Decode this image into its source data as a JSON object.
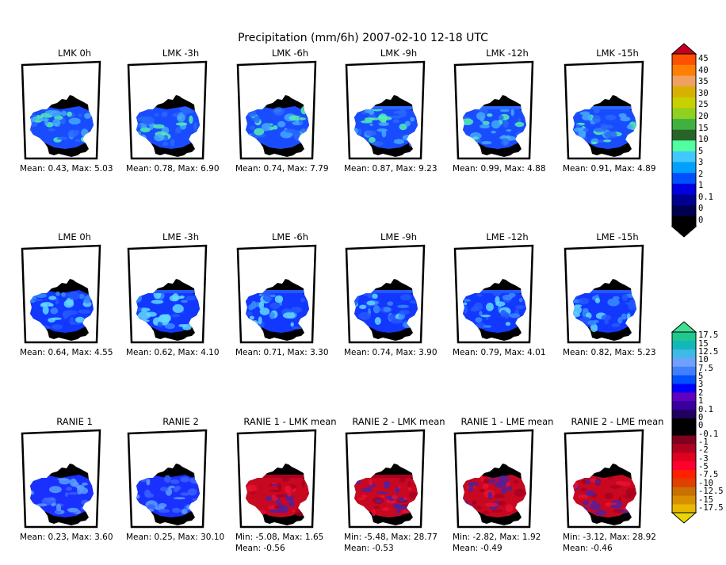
{
  "figure_title": "Precipitation (mm/6h) 2007-02-10 12-18 UTC",
  "map_style": {
    "background": "#000000",
    "colors": {
      "lmk": [
        "#1a4cff",
        "#2a68ff",
        "#44a8ff",
        "#54f0b0"
      ],
      "lme": [
        "#1238ff",
        "#2458ff",
        "#3a8cff",
        "#60d8ff"
      ],
      "ranie": [
        "#1a30ff",
        "#3860ff",
        "#5aa0ff"
      ],
      "diff": [
        "#c80820",
        "#a80020",
        "#e81030",
        "#5020a0"
      ]
    }
  },
  "rows": [
    {
      "panels": [
        {
          "title": "LMK 0h",
          "stat": "Mean: 0.43, Max: 5.03",
          "scheme": "lmk",
          "stripe": false
        },
        {
          "title": "LMK -3h",
          "stat": "Mean: 0.78, Max: 6.90",
          "scheme": "lmk",
          "stripe": false
        },
        {
          "title": "LMK -6h",
          "stat": "Mean: 0.74, Max: 7.79",
          "scheme": "lmk",
          "stripe": false
        },
        {
          "title": "LMK -9h",
          "stat": "Mean: 0.87, Max: 9.23",
          "scheme": "lmk",
          "stripe": true
        },
        {
          "title": "LMK -12h",
          "stat": "Mean: 0.99, Max: 4.88",
          "scheme": "lmk",
          "stripe": true
        },
        {
          "title": "LMK -15h",
          "stat": "Mean: 0.91, Max: 4.89",
          "scheme": "lmk",
          "stripe": true
        }
      ]
    },
    {
      "panels": [
        {
          "title": "LME 0h",
          "stat": "Mean: 0.64, Max: 4.55",
          "scheme": "lme",
          "stripe": false
        },
        {
          "title": "LME -3h",
          "stat": "Mean: 0.62, Max: 4.10",
          "scheme": "lme",
          "stripe": true
        },
        {
          "title": "LME -6h",
          "stat": "Mean: 0.71, Max: 3.30",
          "scheme": "lme",
          "stripe": true
        },
        {
          "title": "LME -9h",
          "stat": "Mean: 0.74, Max: 3.90",
          "scheme": "lme",
          "stripe": true
        },
        {
          "title": "LME -12h",
          "stat": "Mean: 0.79, Max: 4.01",
          "scheme": "lme",
          "stripe": true
        },
        {
          "title": "LME -15h",
          "stat": "Mean: 0.82, Max: 5.23",
          "scheme": "lme",
          "stripe": true
        }
      ]
    },
    {
      "panels": [
        {
          "title": "RANIE 1",
          "stat": "Mean: 0.23, Max: 3.60",
          "scheme": "ranie",
          "stripe": false
        },
        {
          "title": "RANIE 2",
          "stat": "Mean: 0.25, Max: 30.10",
          "scheme": "ranie",
          "stripe": false
        },
        {
          "title": "RANIE 1 - LMK mean",
          "stat": "Min: -5.08, Max: 1.65",
          "stat2": "Mean: -0.56",
          "scheme": "diff",
          "stripe": true
        },
        {
          "title": "RANIE 2 - LMK mean",
          "stat": "Min: -5.48, Max: 28.77",
          "stat2": "Mean: -0.53",
          "scheme": "diff",
          "stripe": true
        },
        {
          "title": "RANIE 1 - LME mean",
          "stat": "Min: -2.82, Max: 1.92",
          "stat2": "Mean: -0.49",
          "scheme": "diff",
          "stripe": false
        },
        {
          "title": "RANIE 2 - LME mean",
          "stat": "Min: -3.12, Max: 28.92",
          "stat2": "Mean: -0.46",
          "scheme": "diff",
          "stripe": false
        }
      ]
    }
  ],
  "colorbars": [
    {
      "name": "precipitation",
      "colors": [
        "#000000",
        "#000000",
        "#000050",
        "#000090",
        "#0000e0",
        "#0050ff",
        "#00a0ff",
        "#40c8ff",
        "#50ffa0",
        "#286428",
        "#40b040",
        "#90d020",
        "#c8d000",
        "#d8b000",
        "#f0a060",
        "#ff8000",
        "#ff5000",
        "#c80020"
      ],
      "labels": [
        "0",
        "0",
        "0.1",
        "1",
        "2",
        "3",
        "5",
        "10",
        "15",
        "20",
        "25",
        "30",
        "35",
        "40",
        "45"
      ]
    },
    {
      "name": "difference",
      "colors": [
        "#e8d800",
        "#e8b800",
        "#d89000",
        "#c87000",
        "#e04000",
        "#ff2000",
        "#ff0030",
        "#e00020",
        "#b00020",
        "#800020",
        "#000000",
        "#000000",
        "#200060",
        "#3800a0",
        "#6000c0",
        "#0000ff",
        "#0050ff",
        "#4080ff",
        "#70a0ff",
        "#40b8e8",
        "#10b8b8",
        "#20c890",
        "#40e090"
      ],
      "labels": [
        "-17.5",
        "-15",
        "-12.5",
        "-10",
        "-7.5",
        "-5",
        "-3",
        "-2",
        "-1",
        "-0.1",
        "0",
        "0",
        "0.1",
        "1",
        "2",
        "3",
        "5",
        "7.5",
        "10",
        "12.5",
        "15",
        "17.5"
      ]
    }
  ]
}
